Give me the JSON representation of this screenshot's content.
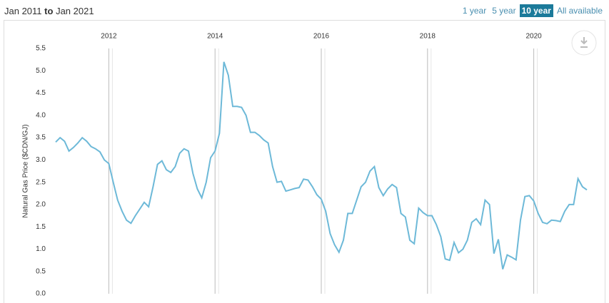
{
  "header": {
    "range_start": "Jan 2011",
    "range_joiner": "to",
    "range_end": "Jan 2021",
    "buttons": [
      "1 year",
      "5 year",
      "10 year",
      "All available"
    ],
    "active_button": 2
  },
  "chart_data": {
    "type": "line",
    "y_label": "Natural Gas Price ($CDN/GJ)",
    "x": [
      2011,
      2011.083,
      2011.167,
      2011.25,
      2011.333,
      2011.417,
      2011.5,
      2011.583,
      2011.667,
      2011.75,
      2011.833,
      2011.917,
      2012,
      2012.083,
      2012.167,
      2012.25,
      2012.333,
      2012.417,
      2012.5,
      2012.583,
      2012.667,
      2012.75,
      2012.833,
      2012.917,
      2013,
      2013.083,
      2013.167,
      2013.25,
      2013.333,
      2013.417,
      2013.5,
      2013.583,
      2013.667,
      2013.75,
      2013.833,
      2013.917,
      2014,
      2014.083,
      2014.167,
      2014.25,
      2014.333,
      2014.417,
      2014.5,
      2014.583,
      2014.667,
      2014.75,
      2014.833,
      2014.917,
      2015,
      2015.083,
      2015.167,
      2015.25,
      2015.333,
      2015.417,
      2015.5,
      2015.583,
      2015.667,
      2015.75,
      2015.833,
      2015.917,
      2016,
      2016.083,
      2016.167,
      2016.25,
      2016.333,
      2016.417,
      2016.5,
      2016.583,
      2016.667,
      2016.75,
      2016.833,
      2016.917,
      2017,
      2017.083,
      2017.167,
      2017.25,
      2017.333,
      2017.417,
      2017.5,
      2017.583,
      2017.667,
      2017.75,
      2017.833,
      2017.917,
      2018,
      2018.083,
      2018.167,
      2018.25,
      2018.333,
      2018.417,
      2018.5,
      2018.583,
      2018.667,
      2018.75,
      2018.833,
      2018.917,
      2019,
      2019.083,
      2019.167,
      2019.25,
      2019.333,
      2019.417,
      2019.5,
      2019.583,
      2019.667,
      2019.75,
      2019.833,
      2019.917,
      2020,
      2020.083,
      2020.167,
      2020.25,
      2020.333,
      2020.417,
      2020.5,
      2020.583,
      2020.667,
      2020.75,
      2020.833,
      2020.917,
      2021
    ],
    "series": [
      {
        "color": "#6db9d8",
        "values": [
          3.4,
          3.5,
          3.42,
          3.2,
          3.28,
          3.38,
          3.5,
          3.42,
          3.3,
          3.25,
          3.18,
          3.0,
          2.92,
          2.5,
          2.1,
          1.85,
          1.65,
          1.58,
          1.75,
          1.9,
          2.05,
          1.95,
          2.4,
          2.9,
          2.98,
          2.78,
          2.72,
          2.85,
          3.15,
          3.25,
          3.2,
          2.7,
          2.35,
          2.15,
          2.5,
          3.05,
          3.2,
          3.6,
          5.2,
          4.9,
          4.2,
          4.2,
          4.18,
          4.0,
          3.62,
          3.62,
          3.55,
          3.45,
          3.38,
          2.85,
          2.5,
          2.52,
          2.3,
          2.33,
          2.36,
          2.38,
          2.57,
          2.55,
          2.4,
          2.22,
          2.12,
          1.85,
          1.35,
          1.1,
          0.93,
          1.2,
          1.8,
          1.8,
          2.1,
          2.4,
          2.5,
          2.75,
          2.85,
          2.38,
          2.2,
          2.35,
          2.45,
          2.38,
          1.8,
          1.72,
          1.2,
          1.12,
          1.92,
          1.82,
          1.75,
          1.75,
          1.55,
          1.28,
          0.78,
          0.75,
          1.15,
          0.92,
          1.0,
          1.2,
          1.6,
          1.68,
          1.55,
          2.1,
          2.0,
          0.9,
          1.22,
          0.55,
          0.87,
          0.82,
          0.76,
          1.65,
          2.18,
          2.2,
          2.08,
          1.8,
          1.6,
          1.57,
          1.65,
          1.64,
          1.62,
          1.85,
          2.0,
          2.0,
          2.58,
          2.4,
          2.33
        ]
      }
    ],
    "xlim": [
      2011,
      2021
    ],
    "xticks": [
      2012,
      2014,
      2016,
      2018,
      2020
    ],
    "ylim": [
      0,
      5.5
    ],
    "yticks": [
      {
        "value": 0,
        "label": "0.0"
      },
      0.5,
      {
        "value": 1,
        "label": "1.0"
      },
      1.5,
      {
        "value": 2,
        "label": "2.0"
      },
      2.5,
      {
        "value": 3,
        "label": "3.0"
      },
      3.5,
      {
        "value": 4,
        "label": "4.0"
      },
      4.5,
      {
        "value": 5,
        "label": "5.0"
      },
      5.5
    ],
    "grid": true
  }
}
